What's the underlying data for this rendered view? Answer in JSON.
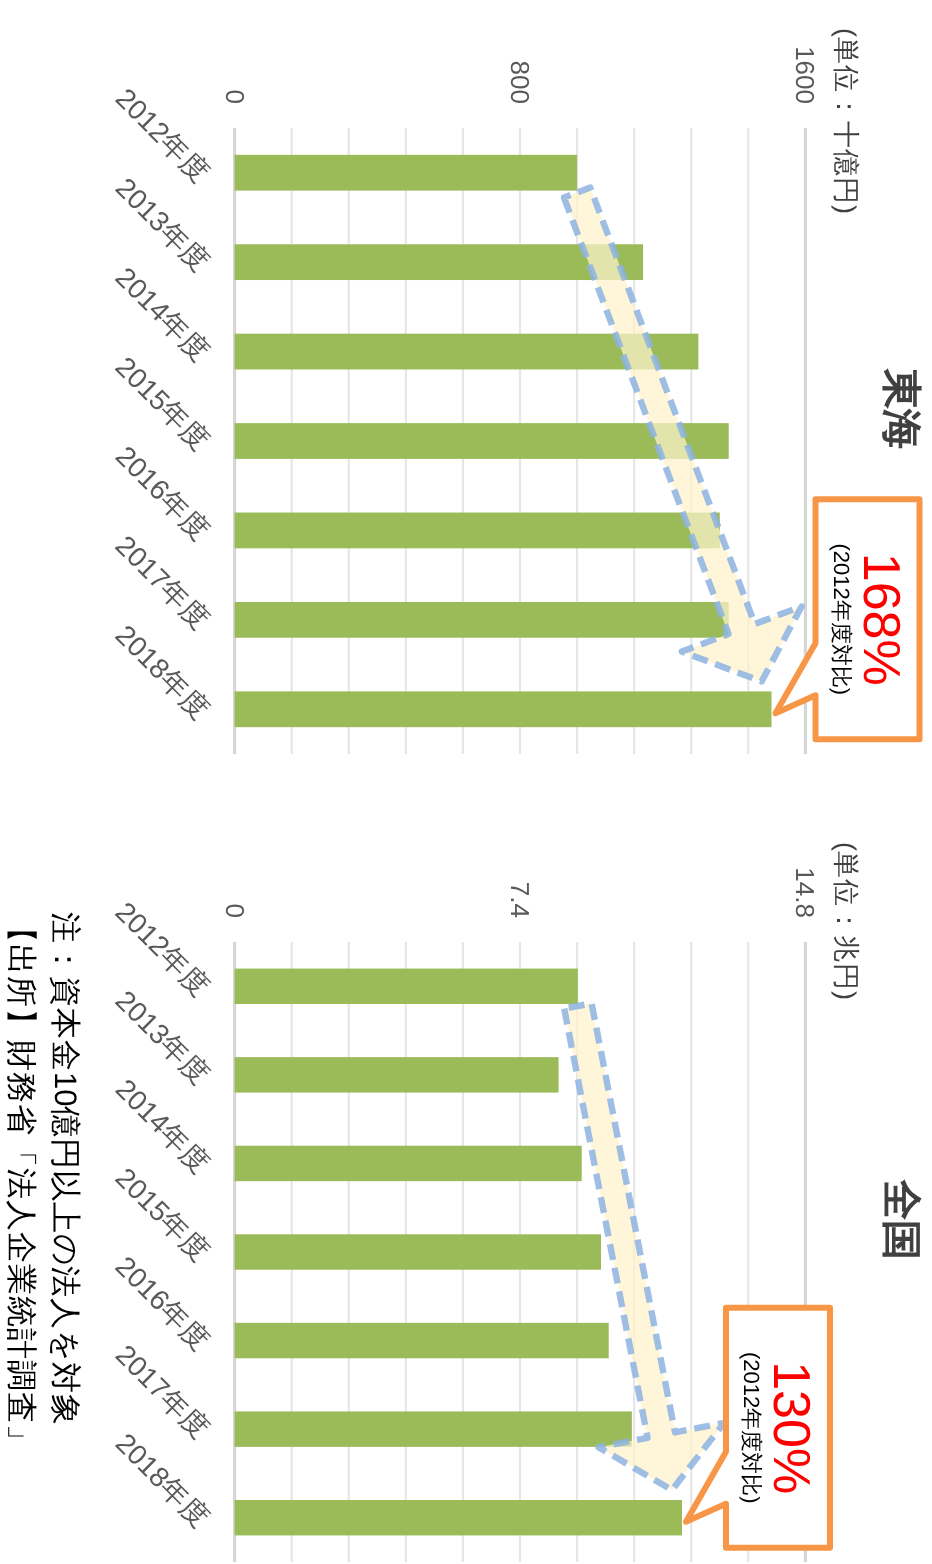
{
  "chart_data": [
    {
      "type": "bar",
      "orientation": "horizontal",
      "categories": [
        "2012年度",
        "2013年度",
        "2014年度",
        "2015年度",
        "2016年度",
        "2017年度",
        "2018年度"
      ],
      "values": [
        960,
        1145,
        1300,
        1385,
        1360,
        1385,
        1505
      ],
      "color": "#9bbb59",
      "xlim": [
        0,
        1600
      ],
      "xticks": [
        0,
        {
          "value": 160,
          "label": null
        },
        {
          "value": 320,
          "label": null
        },
        {
          "value": 480,
          "label": null
        },
        {
          "value": 640,
          "label": null
        },
        800,
        {
          "value": 960,
          "label": null
        },
        {
          "value": 1120,
          "label": null
        },
        {
          "value": 1280,
          "label": null
        },
        {
          "value": 1440,
          "label": null
        },
        1600
      ],
      "grid": "x",
      "annotations": [
        "東海",
        "(単位：十億円)",
        "168%",
        "(2012年度対比)"
      ]
    },
    {
      "type": "bar",
      "orientation": "horizontal",
      "categories": [
        "2012年度",
        "2013年度",
        "2014年度",
        "2015年度",
        "2016年度",
        "2017年度",
        "2018年度"
      ],
      "values": [
        8.9,
        8.4,
        9.0,
        9.5,
        9.7,
        10.3,
        11.6
      ],
      "color": "#9bbb59",
      "xlim": [
        0,
        14.8
      ],
      "xticks": [
        0,
        {
          "value": 1.48,
          "label": null
        },
        {
          "value": 2.96,
          "label": null
        },
        {
          "value": 4.44,
          "label": null
        },
        {
          "value": 5.92,
          "label": null
        },
        7.4,
        {
          "value": 8.88,
          "label": null
        },
        {
          "value": 10.36,
          "label": null
        },
        {
          "value": 11.84,
          "label": null
        },
        {
          "value": 13.32,
          "label": null
        },
        14.8
      ],
      "grid": "x",
      "annotations": [
        "全国",
        "(単位：兆円)",
        "130%",
        "(2012年度対比)",
        "注：資本金10億円以上の法人を対象",
        "【出所】財務省「法人企業統計調査」"
      ]
    }
  ]
}
